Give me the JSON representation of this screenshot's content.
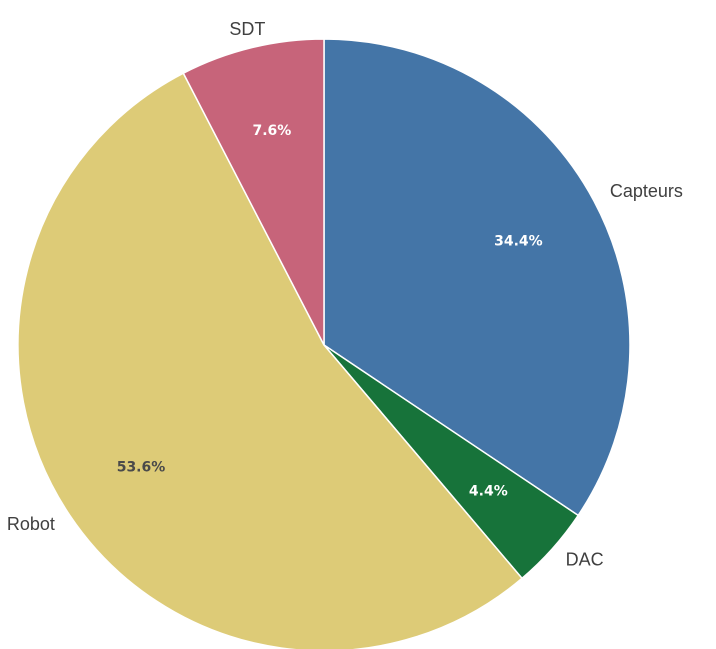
{
  "chart_data": {
    "type": "pie",
    "slices": [
      {
        "label": "Capteurs",
        "value": 34.4,
        "value_label": "34.4%",
        "color": "#4475A7"
      },
      {
        "label": "DAC",
        "value": 4.4,
        "value_label": "4.4%",
        "color": "#17733A"
      },
      {
        "label": "Robot",
        "value": 53.6,
        "value_label": "53.6%",
        "color": "#DDCB77"
      },
      {
        "label": "SDT",
        "value": 7.6,
        "value_label": "7.6%",
        "color": "#C7647A"
      }
    ],
    "start_angle": "top",
    "direction": "clockwise",
    "legend": "none",
    "value_label_colors": {
      "dark_slice": "#ffffff",
      "light_slice": "#4a4a4a"
    }
  }
}
